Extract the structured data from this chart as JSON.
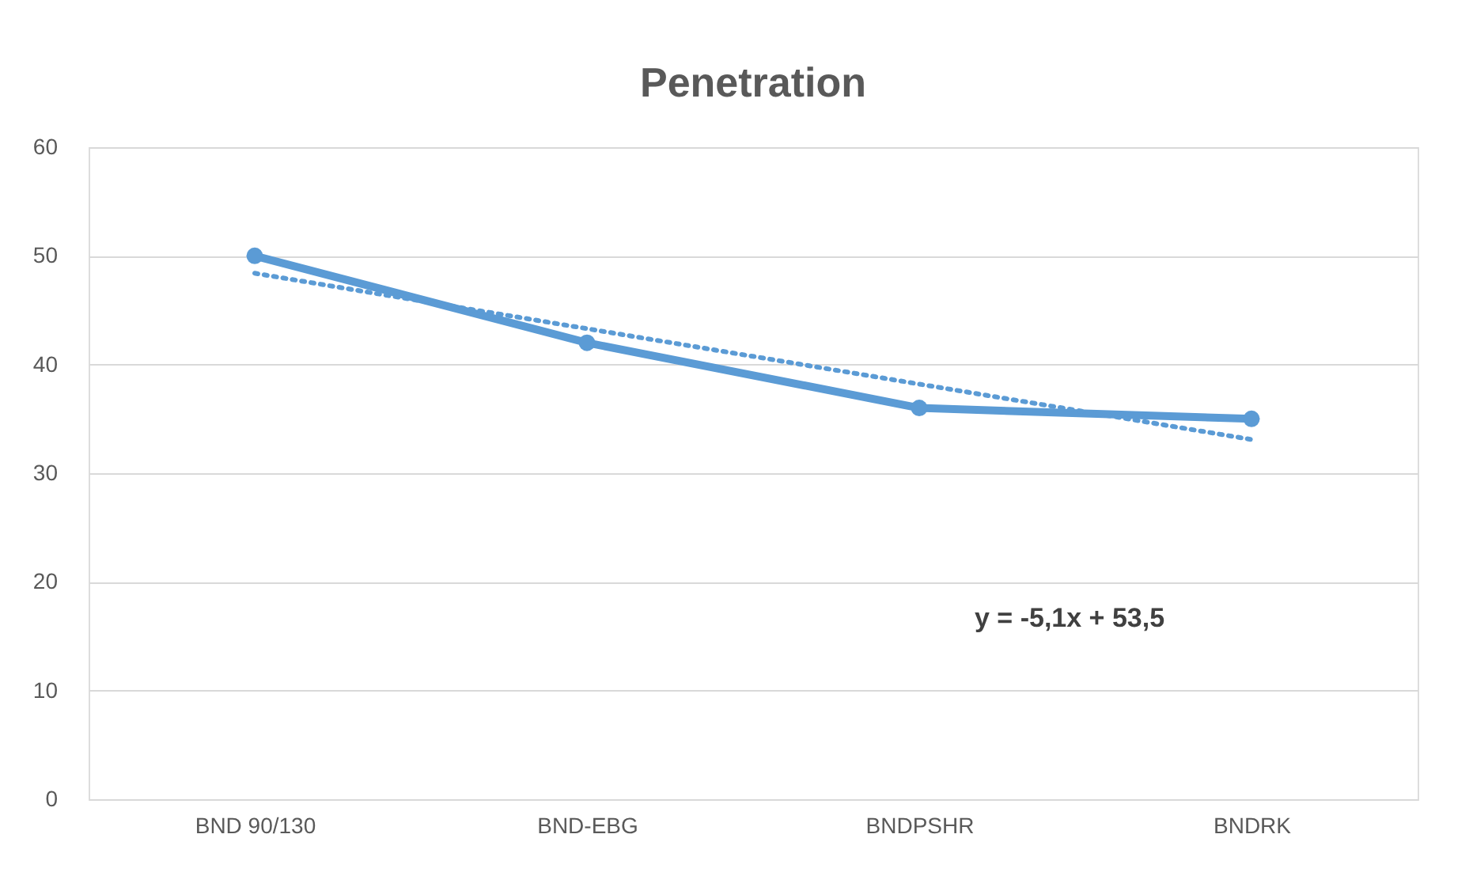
{
  "chart_data": {
    "type": "line",
    "title": "Penetration",
    "categories": [
      "BND 90/130",
      "BND-EBG",
      "BNDPSHR",
      "BNDRK"
    ],
    "series": [
      {
        "color": "#5b9bd5",
        "values": [
          50,
          42,
          36,
          35
        ],
        "marker": "circle",
        "line_style": "solid"
      },
      {
        "color": "#5b9bd5",
        "values": [
          48.4,
          43.3,
          38.2,
          33.1
        ],
        "marker": "none",
        "line_style": "dotted"
      }
    ],
    "ylim": [
      0,
      60
    ],
    "yticks": [
      0,
      10,
      20,
      30,
      40,
      50,
      60
    ],
    "grid": "y",
    "annotations": [
      "y = -5,1x + 53,5"
    ]
  }
}
